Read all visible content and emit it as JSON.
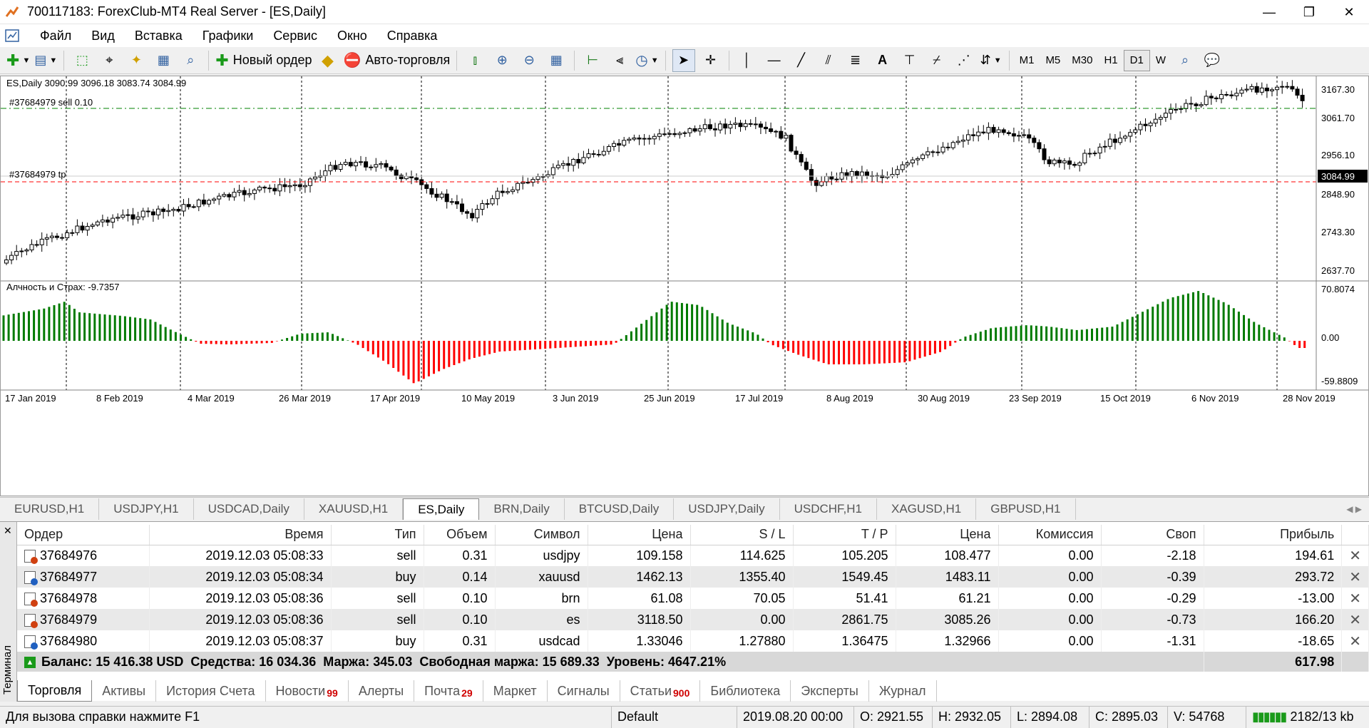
{
  "window": {
    "title": "700117183: ForexClub-MT4 Real Server - [ES,Daily]"
  },
  "menu": [
    "Файл",
    "Вид",
    "Вставка",
    "Графики",
    "Сервис",
    "Окно",
    "Справка"
  ],
  "toolbar": {
    "new_order": "Новый ордер",
    "auto_trading": "Авто-торговля",
    "timeframes": [
      "M1",
      "M5",
      "M30",
      "H1",
      "D1",
      "W"
    ],
    "active_timeframe": "D1"
  },
  "chart": {
    "header": "ES,Daily  3090.99 3096.18 3083.74 3084.99",
    "sell_line_label": "#37684979 sell 0.10",
    "tp_line_label": "#37684979 tp",
    "price_axis": [
      "3167.30",
      "3061.70",
      "2956.10",
      "2848.90",
      "2743.30",
      "2637.70"
    ],
    "current_price": "3084.99",
    "indicator_label": "Алчность и Страх: -9.7357",
    "indicator_axis": [
      "70.8074",
      "0.00",
      "-59.8809"
    ],
    "dates": [
      "17 Jan 2019",
      "8 Feb 2019",
      "4 Mar 2019",
      "26 Mar 2019",
      "17 Apr 2019",
      "10 May 2019",
      "3 Jun 2019",
      "25 Jun 2019",
      "17 Jul 2019",
      "8 Aug 2019",
      "30 Aug 2019",
      "23 Sep 2019",
      "15 Oct 2019",
      "6 Nov 2019",
      "28 Nov 2019"
    ],
    "colors": {
      "bull": "#ffffff",
      "bear": "#000000",
      "pos_hist": "#007a00",
      "neg_hist": "#ff0000",
      "sell_line": "#008000",
      "tp_line": "#ff0000"
    }
  },
  "chart_tabs": [
    "EURUSD,H1",
    "USDJPY,H1",
    "USDCAD,Daily",
    "XAUUSD,H1",
    "ES,Daily",
    "BRN,Daily",
    "BTCUSD,Daily",
    "USDJPY,Daily",
    "USDCHF,H1",
    "XAGUSD,H1",
    "GBPUSD,H1"
  ],
  "active_chart_tab": "ES,Daily",
  "terminal": {
    "side_label": "Терминал",
    "columns": [
      "Ордер",
      "Время",
      "Тип",
      "Объем",
      "Символ",
      "Цена",
      "S / L",
      "T / P",
      "Цена",
      "Комиссия",
      "Своп",
      "Прибыль"
    ],
    "orders": [
      {
        "order": "37684976",
        "time": "2019.12.03 05:08:33",
        "type": "sell",
        "volume": "0.31",
        "symbol": "usdjpy",
        "price": "109.158",
        "sl": "114.625",
        "tp": "105.205",
        "cur_price": "108.477",
        "commission": "0.00",
        "swap": "-2.18",
        "profit": "194.61"
      },
      {
        "order": "37684977",
        "time": "2019.12.03 05:08:34",
        "type": "buy",
        "volume": "0.14",
        "symbol": "xauusd",
        "price": "1462.13",
        "sl": "1355.40",
        "tp": "1549.45",
        "cur_price": "1483.11",
        "commission": "0.00",
        "swap": "-0.39",
        "profit": "293.72"
      },
      {
        "order": "37684978",
        "time": "2019.12.03 05:08:36",
        "type": "sell",
        "volume": "0.10",
        "symbol": "brn",
        "price": "61.08",
        "sl": "70.05",
        "tp": "51.41",
        "cur_price": "61.21",
        "commission": "0.00",
        "swap": "-0.29",
        "profit": "-13.00"
      },
      {
        "order": "37684979",
        "time": "2019.12.03 05:08:36",
        "type": "sell",
        "volume": "0.10",
        "symbol": "es",
        "price": "3118.50",
        "sl": "0.00",
        "tp": "2861.75",
        "cur_price": "3085.26",
        "commission": "0.00",
        "swap": "-0.73",
        "profit": "166.20"
      },
      {
        "order": "37684980",
        "time": "2019.12.03 05:08:37",
        "type": "buy",
        "volume": "0.31",
        "symbol": "usdcad",
        "price": "1.33046",
        "sl": "1.27880",
        "tp": "1.36475",
        "cur_price": "1.32966",
        "commission": "0.00",
        "swap": "-1.31",
        "profit": "-18.65"
      }
    ],
    "balance_line": "Баланс: 15 416.38 USD  Средства: 16 034.36  Маржа: 345.03  Свободная маржа: 15 689.33  Уровень: 4647.21%",
    "total_profit": "617.98",
    "tabs": [
      {
        "label": "Торговля",
        "badge": ""
      },
      {
        "label": "Активы",
        "badge": ""
      },
      {
        "label": "История Счета",
        "badge": ""
      },
      {
        "label": "Новости",
        "badge": "99"
      },
      {
        "label": "Алерты",
        "badge": ""
      },
      {
        "label": "Почта",
        "badge": "29"
      },
      {
        "label": "Маркет",
        "badge": ""
      },
      {
        "label": "Сигналы",
        "badge": ""
      },
      {
        "label": "Статьи",
        "badge": "900"
      },
      {
        "label": "Библиотека",
        "badge": ""
      },
      {
        "label": "Эксперты",
        "badge": ""
      },
      {
        "label": "Журнал",
        "badge": ""
      }
    ]
  },
  "status": {
    "help": "Для вызова справки нажмите F1",
    "profile": "Default",
    "datetime": "2019.08.20 00:00",
    "open": "O: 2921.55",
    "high": "H: 2932.05",
    "low": "L: 2894.08",
    "close": "C: 2895.03",
    "volume": "V: 54768",
    "traffic": "2182/13 kb"
  }
}
